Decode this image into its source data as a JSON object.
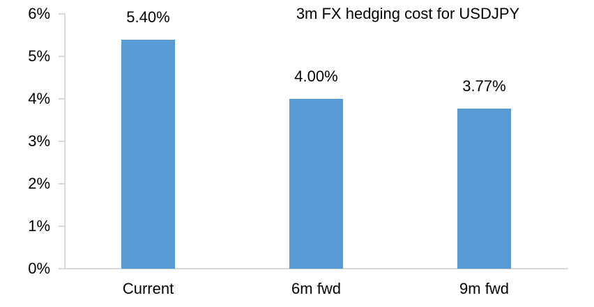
{
  "chart_data": {
    "type": "bar",
    "title": "3m FX hedging cost for USDJPY",
    "categories": [
      "Current",
      "6m fwd",
      "9m fwd"
    ],
    "values": [
      5.4,
      4.0,
      3.77
    ],
    "data_labels": [
      "5.40%",
      "4.00%",
      "3.77%"
    ],
    "xlabel": "",
    "ylabel": "",
    "ylim": [
      0,
      6
    ],
    "y_tick_values": [
      0,
      1,
      2,
      3,
      4,
      5,
      6
    ],
    "y_tick_labels": [
      "0%",
      "1%",
      "2%",
      "3%",
      "4%",
      "5%",
      "6%"
    ],
    "grid": false,
    "legend_position": "none",
    "bar_color": "#5b9bd5",
    "axis_color": "#d9d9d9",
    "text_color": "#000000"
  }
}
